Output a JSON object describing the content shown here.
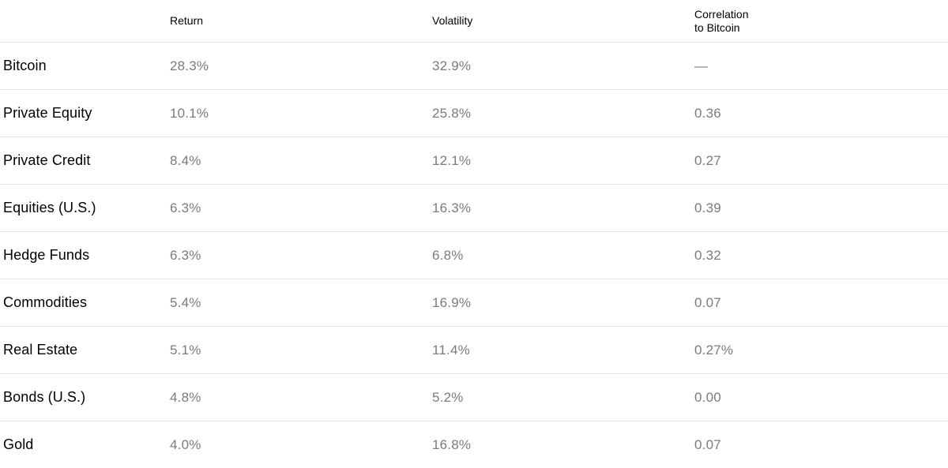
{
  "colors": {
    "text_primary": "#000000",
    "text_secondary": "#7b7b7b",
    "divider": "#e4e4e4",
    "background": "#ffffff"
  },
  "table": {
    "headers": {
      "asset": "",
      "return": "Return",
      "volatility": "Volatility",
      "correlation": "Correlation\nto Bitcoin"
    },
    "rows": [
      {
        "label": "Bitcoin",
        "return": "28.3%",
        "volatility": "32.9%",
        "correlation": "—"
      },
      {
        "label": "Private Equity",
        "return": "10.1%",
        "volatility": "25.8%",
        "correlation": "0.36"
      },
      {
        "label": "Private Credit",
        "return": "8.4%",
        "volatility": "12.1%",
        "correlation": "0.27"
      },
      {
        "label": "Equities (U.S.)",
        "return": "6.3%",
        "volatility": "16.3%",
        "correlation": "0.39"
      },
      {
        "label": "Hedge Funds",
        "return": "6.3%",
        "volatility": "6.8%",
        "correlation": "0.32"
      },
      {
        "label": "Commodities",
        "return": "5.4%",
        "volatility": "16.9%",
        "correlation": "0.07"
      },
      {
        "label": "Real Estate",
        "return": "5.1%",
        "volatility": "11.4%",
        "correlation": "0.27%"
      },
      {
        "label": "Bonds (U.S.)",
        "return": "4.8%",
        "volatility": "5.2%",
        "correlation": "0.00"
      },
      {
        "label": "Gold",
        "return": "4.0%",
        "volatility": "16.8%",
        "correlation": "0.07"
      }
    ]
  },
  "chart_data": {
    "type": "table",
    "title": "",
    "columns": [
      "Asset",
      "Return",
      "Volatility",
      "Correlation to Bitcoin"
    ],
    "rows": [
      [
        "Bitcoin",
        "28.3%",
        "32.9%",
        "—"
      ],
      [
        "Private Equity",
        "10.1%",
        "25.8%",
        "0.36"
      ],
      [
        "Private Credit",
        "8.4%",
        "12.1%",
        "0.27"
      ],
      [
        "Equities (U.S.)",
        "6.3%",
        "16.3%",
        "0.39"
      ],
      [
        "Hedge Funds",
        "6.3%",
        "6.8%",
        "0.32"
      ],
      [
        "Commodities",
        "5.4%",
        "16.9%",
        "0.07"
      ],
      [
        "Real Estate",
        "5.1%",
        "11.4%",
        "0.27%"
      ],
      [
        "Bonds (U.S.)",
        "4.8%",
        "5.2%",
        "0.00"
      ],
      [
        "Gold",
        "4.0%",
        "16.8%",
        "0.07"
      ]
    ]
  }
}
